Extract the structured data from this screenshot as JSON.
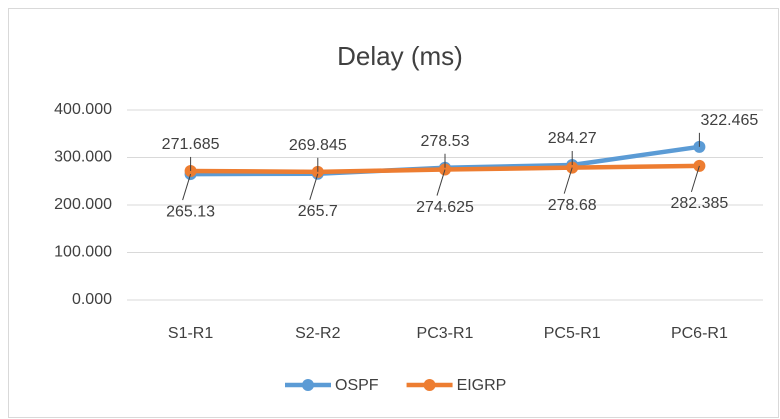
{
  "chart_data": {
    "type": "line",
    "title": "Delay (ms)",
    "categories": [
      "S1-R1",
      "S2-R2",
      "PC3-R1",
      "PC5-R1",
      "PC6-R1"
    ],
    "series": [
      {
        "name": "OSPF",
        "color": "#5b9bd5",
        "values": [
          265.13,
          265.7,
          278.53,
          284.27,
          322.465
        ]
      },
      {
        "name": "EIGRP",
        "color": "#ed7d31",
        "values": [
          271.685,
          269.845,
          274.625,
          278.68,
          282.385
        ]
      }
    ],
    "ylim": [
      0,
      400
    ],
    "yticks": [
      {
        "value": 0,
        "label": "0.000"
      },
      {
        "value": 100,
        "label": "100.000"
      },
      {
        "value": 200,
        "label": "200.000"
      },
      {
        "value": 300,
        "label": "300.000"
      },
      {
        "value": 400,
        "label": "400.000"
      }
    ],
    "grid": true,
    "legend": "bottom"
  }
}
